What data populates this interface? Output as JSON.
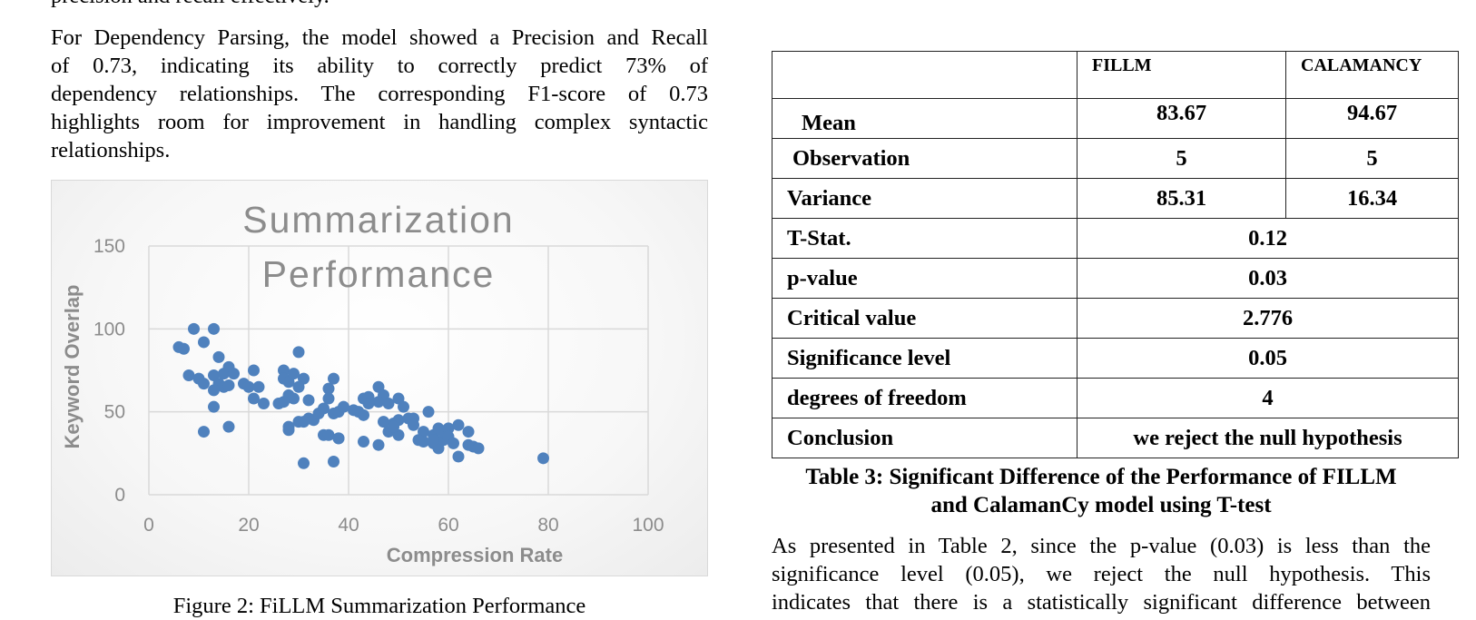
{
  "text": {
    "top_fragment": "precision and recall effectively.",
    "dependency_paragraph_lines": [
      "For Dependency Parsing, the model showed a Precision and Recall",
      "of 0.73, indicating its ability to correctly predict 73% of",
      "dependency relationships. The corresponding F1-score of 0.73",
      "highlights room for improvement in handling complex syntactic",
      "relationships."
    ],
    "figure_caption": "Figure 2: FiLLM Summarization Performance",
    "table_caption_lines": [
      "Table 3: Significant Difference of the Performance of FILLM",
      "and CalamanCy model using T-test"
    ],
    "analysis_paragraph_lines": [
      "As presented in Table 2, since the p-value (0.03) is less than the",
      "significance level (0.05), we reject the null hypothesis. This",
      "indicates that there is a statistically significant difference between"
    ]
  },
  "table": {
    "headers": [
      "",
      "FILLM",
      "CALAMANCY"
    ],
    "rows": [
      {
        "label": "Mean",
        "fillm": "83.67",
        "calamancy": "94.67"
      },
      {
        "label": "Observation",
        "fillm": "5",
        "calamancy": "5"
      },
      {
        "label": "Variance",
        "fillm": "85.31",
        "calamancy": "16.34"
      }
    ],
    "merged_rows": [
      {
        "label": "T-Stat.",
        "value": "0.12"
      },
      {
        "label": "p-value",
        "value": "0.03"
      },
      {
        "label": "Critical value",
        "value": "2.776"
      },
      {
        "label": "Significance level",
        "value": "0.05"
      },
      {
        "label": "degrees of freedom",
        "value": "4"
      },
      {
        "label": "Conclusion",
        "value": "we reject the null hypothesis"
      }
    ]
  },
  "chart_data": {
    "type": "scatter",
    "title": "Summarization Performance",
    "title_lines": [
      "Summarization",
      "Performance"
    ],
    "xlabel": "Compression Rate",
    "ylabel": "Keyword Overlap",
    "xlim": [
      0,
      100
    ],
    "ylim": [
      0,
      150
    ],
    "xticks": [
      0,
      20,
      40,
      60,
      80,
      100
    ],
    "yticks": [
      0,
      50,
      100,
      150
    ],
    "grid": true,
    "point_color": "#4f81bd",
    "points": [
      [
        6,
        89
      ],
      [
        7,
        88
      ],
      [
        9,
        100
      ],
      [
        13,
        100
      ],
      [
        11,
        92
      ],
      [
        8,
        72
      ],
      [
        10,
        70
      ],
      [
        11,
        67
      ],
      [
        13,
        72
      ],
      [
        14,
        83
      ],
      [
        15,
        73
      ],
      [
        16,
        77
      ],
      [
        17,
        73
      ],
      [
        14,
        67
      ],
      [
        15,
        65
      ],
      [
        16,
        66
      ],
      [
        13,
        63
      ],
      [
        19,
        67
      ],
      [
        20,
        65
      ],
      [
        13,
        53
      ],
      [
        11,
        38
      ],
      [
        16,
        41
      ],
      [
        21,
        75
      ],
      [
        22,
        65
      ],
      [
        21,
        58
      ],
      [
        23,
        55
      ],
      [
        26,
        55
      ],
      [
        27,
        75
      ],
      [
        27,
        70
      ],
      [
        28,
        68
      ],
      [
        29,
        73
      ],
      [
        30,
        86
      ],
      [
        28,
        60
      ],
      [
        29,
        58
      ],
      [
        31,
        70
      ],
      [
        27,
        56
      ],
      [
        30,
        44
      ],
      [
        28,
        41
      ],
      [
        28,
        39
      ],
      [
        32,
        57
      ],
      [
        32,
        46
      ],
      [
        31,
        19
      ],
      [
        33,
        45
      ],
      [
        34,
        49
      ],
      [
        35,
        52
      ],
      [
        35,
        36
      ],
      [
        36,
        64
      ],
      [
        37,
        70
      ],
      [
        36,
        58
      ],
      [
        37,
        49
      ],
      [
        36,
        36
      ],
      [
        37,
        20
      ],
      [
        38,
        50
      ],
      [
        38,
        34
      ],
      [
        39,
        53
      ],
      [
        41,
        51
      ],
      [
        42,
        50
      ],
      [
        43,
        58
      ],
      [
        44,
        59
      ],
      [
        43,
        48
      ],
      [
        43,
        32
      ],
      [
        46,
        65
      ],
      [
        47,
        60
      ],
      [
        46,
        56
      ],
      [
        48,
        55
      ],
      [
        47,
        44
      ],
      [
        46,
        30
      ],
      [
        48,
        38
      ],
      [
        49,
        43
      ],
      [
        50,
        45
      ],
      [
        50,
        36
      ],
      [
        50,
        58
      ],
      [
        51,
        53
      ],
      [
        52,
        46
      ],
      [
        53,
        46
      ],
      [
        53,
        42
      ],
      [
        55,
        38
      ],
      [
        55,
        32
      ],
      [
        56,
        50
      ],
      [
        57,
        36
      ],
      [
        57,
        31
      ],
      [
        58,
        28
      ],
      [
        58,
        40
      ],
      [
        59,
        33
      ],
      [
        59,
        38
      ],
      [
        60,
        40
      ],
      [
        60,
        35
      ],
      [
        61,
        31
      ],
      [
        62,
        42
      ],
      [
        62,
        23
      ],
      [
        64,
        38
      ],
      [
        64,
        30
      ],
      [
        65,
        29
      ],
      [
        66,
        28
      ],
      [
        79,
        22
      ],
      [
        44,
        55
      ],
      [
        49,
        41
      ],
      [
        57,
        33
      ],
      [
        30,
        65
      ],
      [
        31,
        44
      ],
      [
        38,
        34
      ],
      [
        54,
        33
      ]
    ]
  }
}
